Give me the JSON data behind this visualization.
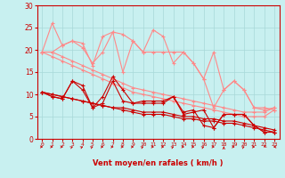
{
  "background_color": "#c8f0f0",
  "grid_color": "#a8d8d8",
  "x_values": [
    0,
    1,
    2,
    3,
    4,
    5,
    6,
    7,
    8,
    9,
    10,
    11,
    12,
    13,
    14,
    15,
    16,
    17,
    18,
    19,
    20,
    21,
    22,
    23
  ],
  "line1_y": [
    19.5,
    19.5,
    21.0,
    22.0,
    20.5,
    17.0,
    19.5,
    24.0,
    23.5,
    22.0,
    19.5,
    19.5,
    19.5,
    19.5,
    19.5,
    17.0,
    13.5,
    19.5,
    11.0,
    13.0,
    11.0,
    7.0,
    7.0,
    6.5
  ],
  "line2_y": [
    19.5,
    26.0,
    21.0,
    22.0,
    21.5,
    16.5,
    23.0,
    24.0,
    15.0,
    22.0,
    19.5,
    24.5,
    23.0,
    17.0,
    19.5,
    17.0,
    13.5,
    7.0,
    11.0,
    13.0,
    11.0,
    7.0,
    6.5,
    7.0
  ],
  "line3_trend1": [
    19.5,
    18.5,
    17.5,
    16.5,
    15.5,
    14.5,
    13.5,
    12.5,
    11.5,
    10.5,
    10.0,
    9.5,
    9.0,
    8.5,
    8.0,
    7.5,
    7.0,
    6.5,
    6.0,
    5.5,
    5.0,
    5.0,
    5.0,
    6.5
  ],
  "line4_trend2": [
    19.5,
    19.5,
    18.5,
    17.5,
    16.5,
    15.5,
    14.5,
    13.5,
    12.5,
    11.5,
    11.0,
    10.5,
    10.0,
    9.5,
    9.0,
    8.5,
    8.0,
    7.5,
    7.0,
    6.5,
    6.0,
    6.0,
    6.0,
    7.0
  ],
  "line5_y": [
    10.5,
    9.5,
    9.0,
    13.0,
    12.0,
    7.0,
    8.0,
    13.0,
    8.5,
    8.0,
    8.0,
    8.0,
    8.0,
    9.5,
    5.5,
    6.0,
    6.5,
    2.5,
    5.5,
    5.5,
    5.5,
    3.0,
    1.5,
    1.5
  ],
  "line6_y": [
    10.5,
    9.5,
    9.0,
    13.0,
    11.0,
    7.0,
    9.5,
    14.0,
    11.0,
    8.0,
    8.5,
    8.5,
    8.5,
    9.5,
    6.0,
    6.5,
    3.0,
    2.5,
    5.5,
    5.5,
    5.5,
    3.0,
    1.5,
    1.5
  ],
  "line7_trend3": [
    10.5,
    10.0,
    9.5,
    9.0,
    8.5,
    8.0,
    7.5,
    7.0,
    6.5,
    6.0,
    5.5,
    5.5,
    5.5,
    5.0,
    4.5,
    4.5,
    4.0,
    4.0,
    3.5,
    3.5,
    3.0,
    2.5,
    2.0,
    1.5
  ],
  "line8_trend4": [
    10.5,
    10.0,
    9.5,
    9.0,
    8.5,
    8.0,
    7.5,
    7.0,
    7.0,
    6.5,
    6.0,
    6.0,
    6.0,
    5.5,
    5.0,
    5.0,
    4.5,
    4.5,
    4.0,
    4.0,
    3.5,
    3.0,
    2.5,
    2.0
  ],
  "wind_dirs": [
    0,
    0,
    0,
    45,
    45,
    45,
    0,
    0,
    0,
    0,
    45,
    0,
    0,
    45,
    0,
    0,
    45,
    0,
    90,
    0,
    45,
    0,
    -135,
    180
  ],
  "color_pink": "#ff8888",
  "color_red": "#cc0000",
  "xlabel": "Vent moyen/en rafales ( km/h )",
  "ylim": [
    0,
    30
  ],
  "xlim": [
    -0.5,
    23.5
  ]
}
